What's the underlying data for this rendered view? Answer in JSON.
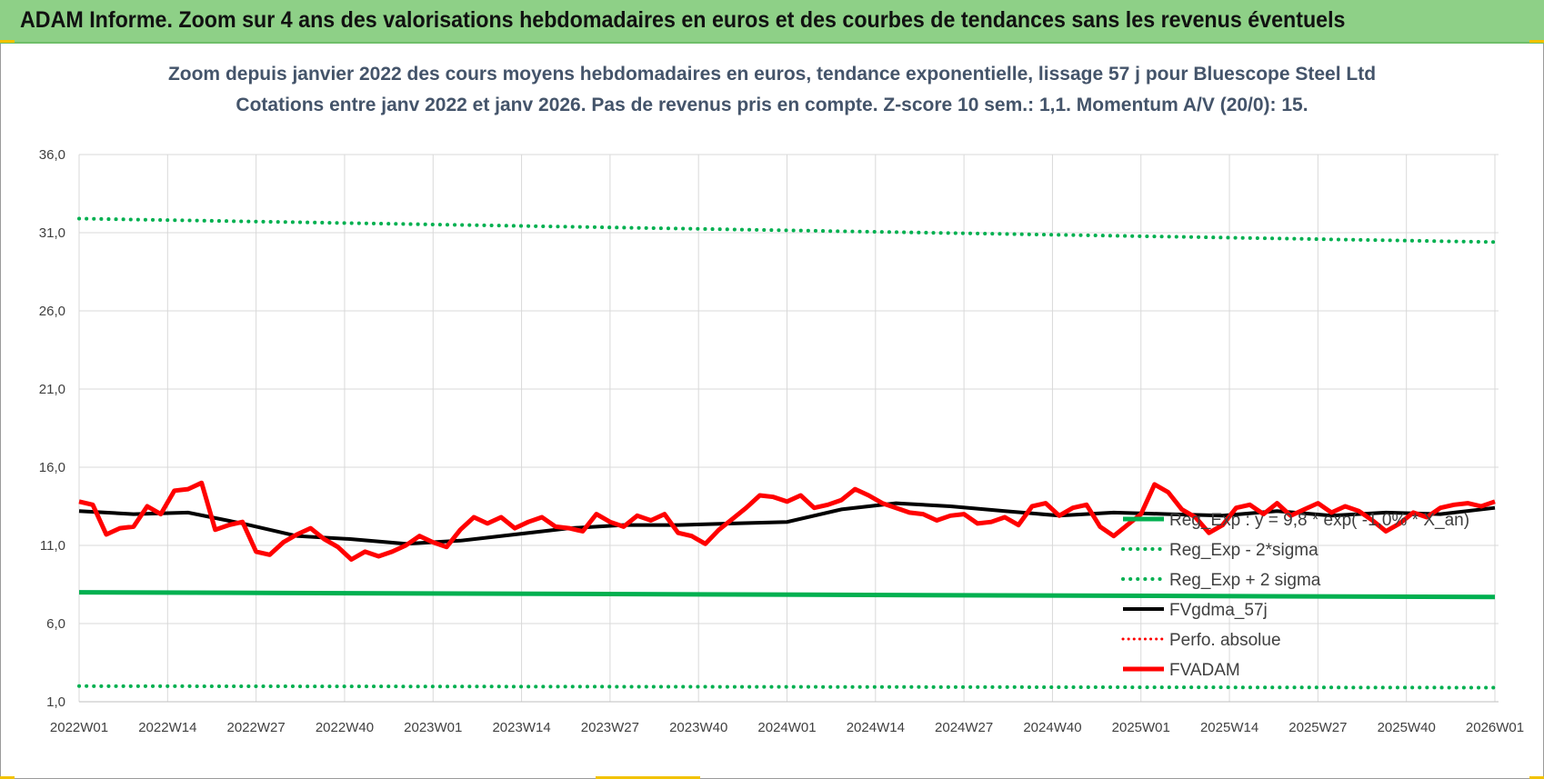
{
  "header": {
    "banner_title": "ADAM Informe. Zoom sur 4 ans des valorisations hebdomadaires en euros et des courbes de tendances sans les revenus éventuels"
  },
  "colors": {
    "banner_bg": "#8ed087",
    "reg_exp": "#00b050",
    "fvgdma": "#000000",
    "fvadam": "#ff0000",
    "perfo": "#ff0000"
  },
  "chart_data": {
    "type": "line",
    "title": "Zoom depuis janvier 2022 des cours moyens hebdomadaires en euros, tendance exponentielle, lissage 57 j pour Bluescope Steel Ltd",
    "subtitle": "Cotations entre janv 2022 et janv 2026. Pas de revenus pris en compte. Z-score 10 sem.: 1,1. Momentum A/V (20/0): 15.",
    "xlabel": "",
    "ylabel": "",
    "ylim": [
      1,
      36
    ],
    "yticks": [
      "1,0",
      "6,0",
      "11,0",
      "16,0",
      "21,0",
      "26,0",
      "31,0",
      "36,0"
    ],
    "ytick_values": [
      1,
      6,
      11,
      16,
      21,
      26,
      31,
      36
    ],
    "xticks": [
      "2022W01",
      "2022W14",
      "2022W27",
      "2022W40",
      "2023W01",
      "2023W14",
      "2023W27",
      "2023W40",
      "2024W01",
      "2024W14",
      "2024W27",
      "2024W40",
      "2025W01",
      "2025W14",
      "2025W27",
      "2025W40",
      "2026W01"
    ],
    "x_weeks_total": 209,
    "grid": true,
    "legend_position": "right-center",
    "series": [
      {
        "name": "Reg_Exp : y = 9,8 * exp( -1,0% * X_an)",
        "style": "solid-green-thick",
        "x": [
          0,
          208
        ],
        "values": [
          8.0,
          7.7
        ]
      },
      {
        "name": "Reg_Exp - 2*sigma",
        "style": "dotted-green",
        "x": [
          0,
          208
        ],
        "values": [
          2.0,
          1.9
        ]
      },
      {
        "name": "Reg_Exp + 2 sigma",
        "style": "dotted-green",
        "x": [
          0,
          208
        ],
        "values": [
          31.9,
          30.4
        ]
      },
      {
        "name": "FVgdma_57j",
        "style": "solid-black",
        "x": [
          0,
          8,
          16,
          24,
          32,
          40,
          48,
          56,
          64,
          72,
          80,
          88,
          96,
          104,
          112,
          120,
          128,
          136,
          144,
          152,
          160,
          168,
          176,
          184,
          192,
          200,
          208
        ],
        "values": [
          13.2,
          13.0,
          13.1,
          12.4,
          11.6,
          11.4,
          11.1,
          11.3,
          11.7,
          12.1,
          12.3,
          12.3,
          12.4,
          12.5,
          13.3,
          13.7,
          13.5,
          13.2,
          12.9,
          13.1,
          13.0,
          12.9,
          13.2,
          12.9,
          13.1,
          13.0,
          13.4
        ]
      },
      {
        "name": "Perfo. absolue",
        "style": "dotted-red",
        "x": [],
        "values": []
      },
      {
        "name": "FVADAM",
        "style": "solid-red-thick",
        "x": [
          0,
          2,
          4,
          6,
          8,
          10,
          12,
          14,
          16,
          18,
          20,
          22,
          24,
          26,
          28,
          30,
          32,
          34,
          36,
          38,
          40,
          42,
          44,
          46,
          48,
          50,
          52,
          54,
          56,
          58,
          60,
          62,
          64,
          66,
          68,
          70,
          72,
          74,
          76,
          78,
          80,
          82,
          84,
          86,
          88,
          90,
          92,
          94,
          96,
          98,
          100,
          102,
          104,
          106,
          108,
          110,
          112,
          114,
          116,
          118,
          120,
          122,
          124,
          126,
          128,
          130,
          132,
          134,
          136,
          138,
          140,
          142,
          144,
          146,
          148,
          150,
          152,
          154,
          156,
          158,
          160,
          162,
          164,
          166,
          168,
          170,
          172,
          174,
          176,
          178,
          180,
          182,
          184,
          186,
          188,
          190,
          192,
          194,
          196,
          198,
          200,
          202,
          204,
          206,
          208
        ],
        "values": [
          13.8,
          13.6,
          11.7,
          12.1,
          12.2,
          13.5,
          13.0,
          14.5,
          14.6,
          15.0,
          12.0,
          12.3,
          12.5,
          10.6,
          10.4,
          11.2,
          11.7,
          12.1,
          11.4,
          10.9,
          10.1,
          10.6,
          10.3,
          10.6,
          11.0,
          11.6,
          11.2,
          10.9,
          12.0,
          12.8,
          12.4,
          12.8,
          12.1,
          12.5,
          12.8,
          12.2,
          12.1,
          11.9,
          13.0,
          12.5,
          12.2,
          12.9,
          12.6,
          13.0,
          11.8,
          11.6,
          11.1,
          12.0,
          12.7,
          13.4,
          14.2,
          14.1,
          13.8,
          14.2,
          13.4,
          13.6,
          13.9,
          14.6,
          14.2,
          13.7,
          13.4,
          13.1,
          13.0,
          12.6,
          12.9,
          13.0,
          12.4,
          12.5,
          12.8,
          12.3,
          13.5,
          13.7,
          12.9,
          13.4,
          13.6,
          12.2,
          11.6,
          12.3,
          13.0,
          14.9,
          14.4,
          13.3,
          12.8,
          11.8,
          12.3,
          13.4,
          13.6,
          13.0,
          13.7,
          12.9,
          13.3,
          13.7,
          13.1,
          13.5,
          13.2,
          12.6,
          11.9,
          12.4,
          13.1,
          12.8,
          13.4,
          13.6,
          13.7,
          13.5,
          13.8
        ]
      }
    ]
  }
}
